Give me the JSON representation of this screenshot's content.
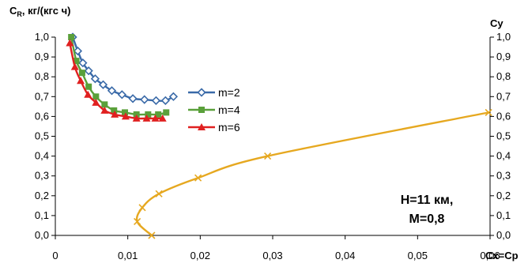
{
  "chart_data": {
    "type": "line",
    "left_axis_title": {
      "main": "C",
      "sub": "R",
      "rest": ", кг/(кгс ч)"
    },
    "right_axis_title": "Cy",
    "x_axis_title": "Cx=Cp",
    "xlim": [
      0,
      0.06
    ],
    "ylim": [
      0,
      1.0
    ],
    "x_ticks": [
      "0",
      "0,01",
      "0,02",
      "0,03",
      "0,04",
      "0,05",
      "0,06"
    ],
    "x_tick_values": [
      0,
      0.01,
      0.02,
      0.03,
      0.04,
      0.05,
      0.06
    ],
    "y_ticks_left": [
      "0,0",
      "0,1",
      "0,2",
      "0,3",
      "0,4",
      "0,5",
      "0,6",
      "0,7",
      "0,8",
      "0,9",
      "1,0"
    ],
    "y_ticks_right": [
      "0,0",
      "0,1",
      "0,2",
      "0,3",
      "0,4",
      "0,5",
      "0,6",
      "0,7",
      "0,8",
      "0,9",
      "1,0"
    ],
    "y_tick_values": [
      0,
      0.1,
      0.2,
      0.3,
      0.4,
      0.5,
      0.6,
      0.7,
      0.8,
      0.9,
      1.0
    ],
    "grid": false,
    "legend_position": "center",
    "series": [
      {
        "name": "m=2",
        "color": "#3a6aa8",
        "marker": "diamond",
        "x": [
          0.0024,
          0.0031,
          0.0038,
          0.0046,
          0.0055,
          0.0066,
          0.0078,
          0.0092,
          0.0107,
          0.0123,
          0.0139,
          0.0152,
          0.0163
        ],
        "y": [
          1.0,
          0.93,
          0.87,
          0.83,
          0.79,
          0.76,
          0.73,
          0.71,
          0.69,
          0.685,
          0.68,
          0.68,
          0.7
        ]
      },
      {
        "name": "m=4",
        "color": "#5aa03a",
        "marker": "square",
        "x": [
          0.0022,
          0.0029,
          0.0037,
          0.0046,
          0.0056,
          0.0068,
          0.0081,
          0.0096,
          0.0112,
          0.0128,
          0.0142,
          0.0153
        ],
        "y": [
          1.0,
          0.88,
          0.82,
          0.75,
          0.7,
          0.66,
          0.63,
          0.62,
          0.61,
          0.61,
          0.61,
          0.62
        ]
      },
      {
        "name": "m=6",
        "color": "#e02020",
        "marker": "triangle",
        "x": [
          0.002,
          0.0027,
          0.0035,
          0.0045,
          0.0056,
          0.0068,
          0.0082,
          0.0097,
          0.0112,
          0.0126,
          0.0138,
          0.0148
        ],
        "y": [
          0.97,
          0.85,
          0.78,
          0.71,
          0.67,
          0.63,
          0.61,
          0.6,
          0.59,
          0.59,
          0.59,
          0.59
        ]
      },
      {
        "name": "",
        "color": "#e6a820",
        "marker": "cross",
        "x": [
          0.0133,
          0.0113,
          0.012,
          0.0143,
          0.0197,
          0.0293,
          0.0598
        ],
        "y": [
          0.0,
          0.07,
          0.14,
          0.21,
          0.29,
          0.4,
          0.62
        ]
      }
    ],
    "annotation": [
      "H=11 км,",
      "M=0,8"
    ]
  }
}
